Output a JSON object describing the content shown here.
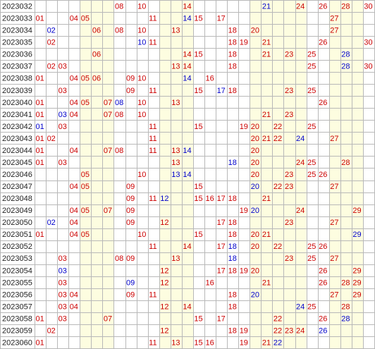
{
  "chart_data": {
    "type": "table",
    "colors": {
      "red": "#cc0000",
      "blue": "#0000cc",
      "issue_text": "#222222",
      "band_fill": "#fdfde0",
      "grid_line": "#b8b8b8",
      "background": "#ffffff"
    },
    "number_columns": 30,
    "shaded_column_bands": [
      [
        5,
        7
      ],
      [
        12,
        14
      ],
      [
        20,
        24
      ],
      [
        27,
        29
      ]
    ],
    "rows": [
      {
        "issue": "2023032",
        "numbers": [
          "08",
          "10",
          "14",
          "21",
          "24",
          "26",
          "28",
          "30"
        ],
        "colors": [
          "red",
          "red",
          "red",
          "blue",
          "red",
          "red",
          "red",
          "red"
        ]
      },
      {
        "issue": "2023033",
        "numbers": [
          "01",
          "04",
          "05",
          "11",
          "14",
          "15",
          "17",
          "27"
        ],
        "colors": [
          "red",
          "red",
          "red",
          "red",
          "blue",
          "red",
          "red",
          "red"
        ]
      },
      {
        "issue": "2023034",
        "numbers": [
          "02",
          "06",
          "08",
          "10",
          "13",
          "18",
          "20",
          "27"
        ],
        "colors": [
          "blue",
          "red",
          "red",
          "red",
          "red",
          "red",
          "red",
          "red"
        ]
      },
      {
        "issue": "2023035",
        "numbers": [
          "02",
          "10",
          "11",
          "18",
          "19",
          "21",
          "26",
          "30"
        ],
        "colors": [
          "red",
          "blue",
          "red",
          "red",
          "red",
          "red",
          "red",
          "red"
        ]
      },
      {
        "issue": "2023036",
        "numbers": [
          "06",
          "14",
          "15",
          "18",
          "21",
          "23",
          "25",
          "28"
        ],
        "colors": [
          "red",
          "red",
          "red",
          "red",
          "red",
          "red",
          "red",
          "blue"
        ]
      },
      {
        "issue": "2023037",
        "numbers": [
          "02",
          "03",
          "13",
          "14",
          "18",
          "25",
          "28",
          "30"
        ],
        "colors": [
          "red",
          "red",
          "red",
          "red",
          "red",
          "red",
          "blue",
          "red"
        ]
      },
      {
        "issue": "2023038",
        "numbers": [
          "01",
          "04",
          "05",
          "06",
          "09",
          "10",
          "14",
          "16"
        ],
        "colors": [
          "red",
          "red",
          "red",
          "red",
          "red",
          "red",
          "blue",
          "red"
        ]
      },
      {
        "issue": "2023039",
        "numbers": [
          "03",
          "09",
          "11",
          "15",
          "17",
          "18",
          "23",
          "25"
        ],
        "colors": [
          "red",
          "red",
          "red",
          "red",
          "blue",
          "red",
          "red",
          "red"
        ]
      },
      {
        "issue": "2023040",
        "numbers": [
          "01",
          "04",
          "05",
          "07",
          "08",
          "10",
          "13",
          "26"
        ],
        "colors": [
          "red",
          "red",
          "red",
          "red",
          "blue",
          "red",
          "red",
          "red"
        ]
      },
      {
        "issue": "2023041",
        "numbers": [
          "01",
          "03",
          "04",
          "07",
          "08",
          "10",
          "21",
          "23"
        ],
        "colors": [
          "red",
          "blue",
          "red",
          "red",
          "red",
          "red",
          "red",
          "red"
        ]
      },
      {
        "issue": "2023042",
        "numbers": [
          "01",
          "03",
          "11",
          "15",
          "19",
          "20",
          "22",
          "25"
        ],
        "colors": [
          "blue",
          "red",
          "red",
          "red",
          "red",
          "red",
          "red",
          "red"
        ]
      },
      {
        "issue": "2023043",
        "numbers": [
          "01",
          "02",
          "11",
          "20",
          "21",
          "22",
          "24",
          "27"
        ],
        "colors": [
          "red",
          "red",
          "red",
          "red",
          "red",
          "red",
          "blue",
          "red"
        ]
      },
      {
        "issue": "2023044",
        "numbers": [
          "01",
          "04",
          "07",
          "08",
          "11",
          "13",
          "14",
          "20"
        ],
        "colors": [
          "red",
          "red",
          "red",
          "red",
          "red",
          "red",
          "blue",
          "red"
        ]
      },
      {
        "issue": "2023045",
        "numbers": [
          "01",
          "03",
          "13",
          "18",
          "20",
          "24",
          "25",
          "28"
        ],
        "colors": [
          "red",
          "red",
          "red",
          "blue",
          "red",
          "red",
          "red",
          "red"
        ]
      },
      {
        "issue": "2023046",
        "numbers": [
          "05",
          "10",
          "13",
          "14",
          "20",
          "23",
          "25",
          "26"
        ],
        "colors": [
          "red",
          "red",
          "blue",
          "blue",
          "red",
          "red",
          "red",
          "red"
        ]
      },
      {
        "issue": "2023047",
        "numbers": [
          "04",
          "05",
          "09",
          "15",
          "20",
          "22",
          "23",
          "27"
        ],
        "colors": [
          "red",
          "red",
          "red",
          "red",
          "blue",
          "red",
          "red",
          "red"
        ]
      },
      {
        "issue": "2023048",
        "numbers": [
          "09",
          "11",
          "12",
          "15",
          "16",
          "17",
          "18",
          "21"
        ],
        "colors": [
          "red",
          "red",
          "blue",
          "red",
          "red",
          "red",
          "red",
          "red"
        ]
      },
      {
        "issue": "2023049",
        "numbers": [
          "04",
          "05",
          "07",
          "09",
          "19",
          "20",
          "24",
          "29"
        ],
        "colors": [
          "red",
          "red",
          "red",
          "red",
          "red",
          "blue",
          "red",
          "red"
        ]
      },
      {
        "issue": "2023050",
        "numbers": [
          "02",
          "04",
          "09",
          "12",
          "17",
          "18",
          "23",
          "27"
        ],
        "colors": [
          "blue",
          "red",
          "red",
          "red",
          "red",
          "red",
          "red",
          "red"
        ]
      },
      {
        "issue": "2023051",
        "numbers": [
          "01",
          "04",
          "05",
          "10",
          "15",
          "18",
          "20",
          "21",
          "29"
        ],
        "colors": [
          "red",
          "red",
          "red",
          "red",
          "red",
          "red",
          "red",
          "red",
          "blue"
        ]
      },
      {
        "issue": "2023052",
        "numbers": [
          "11",
          "14",
          "17",
          "18",
          "20",
          "22",
          "25",
          "26"
        ],
        "colors": [
          "red",
          "red",
          "red",
          "blue",
          "red",
          "red",
          "red",
          "red"
        ]
      },
      {
        "issue": "2023053",
        "numbers": [
          "03",
          "08",
          "09",
          "13",
          "18",
          "23",
          "25",
          "27"
        ],
        "colors": [
          "red",
          "red",
          "red",
          "red",
          "blue",
          "red",
          "red",
          "red"
        ]
      },
      {
        "issue": "2023054",
        "numbers": [
          "03",
          "12",
          "17",
          "18",
          "19",
          "20",
          "26",
          "29"
        ],
        "colors": [
          "blue",
          "red",
          "red",
          "red",
          "red",
          "red",
          "red",
          "red"
        ]
      },
      {
        "issue": "2023055",
        "numbers": [
          "03",
          "09",
          "12",
          "16",
          "21",
          "26",
          "28",
          "29"
        ],
        "colors": [
          "red",
          "blue",
          "red",
          "red",
          "red",
          "red",
          "red",
          "red"
        ]
      },
      {
        "issue": "2023056",
        "numbers": [
          "03",
          "04",
          "09",
          "11",
          "18",
          "20",
          "27",
          "29"
        ],
        "colors": [
          "red",
          "red",
          "red",
          "red",
          "red",
          "blue",
          "red",
          "red"
        ]
      },
      {
        "issue": "2023057",
        "numbers": [
          "03",
          "04",
          "12",
          "14",
          "18",
          "24",
          "25",
          "28"
        ],
        "colors": [
          "red",
          "red",
          "red",
          "red",
          "red",
          "blue",
          "red",
          "red"
        ]
      },
      {
        "issue": "2023058",
        "numbers": [
          "01",
          "03",
          "07",
          "15",
          "17",
          "22",
          "26",
          "28"
        ],
        "colors": [
          "red",
          "red",
          "red",
          "red",
          "red",
          "red",
          "red",
          "blue"
        ]
      },
      {
        "issue": "2023059",
        "numbers": [
          "02",
          "12",
          "18",
          "19",
          "22",
          "23",
          "24",
          "26"
        ],
        "colors": [
          "red",
          "red",
          "red",
          "red",
          "red",
          "red",
          "red",
          "blue"
        ]
      },
      {
        "issue": "2023060",
        "numbers": [
          "01",
          "11",
          "13",
          "15",
          "16",
          "19",
          "21",
          "22"
        ],
        "colors": [
          "red",
          "red",
          "red",
          "red",
          "red",
          "red",
          "red",
          "blue"
        ]
      }
    ]
  }
}
